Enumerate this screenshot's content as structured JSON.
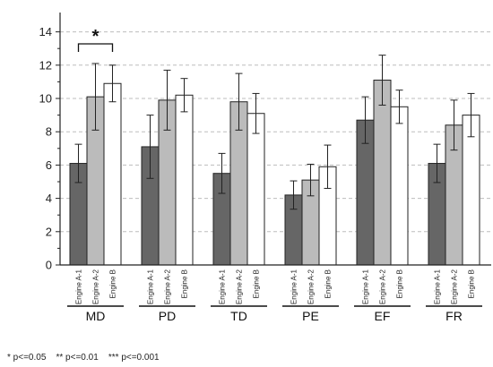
{
  "chart_data": {
    "type": "bar",
    "title": "",
    "xlabel": "",
    "ylabel": "",
    "ylim": [
      0,
      15
    ],
    "yticks": [
      0,
      2,
      4,
      6,
      8,
      10,
      12,
      14
    ],
    "grid": "horizontal dashed",
    "groups": [
      "MD",
      "PD",
      "TD",
      "PE",
      "EF",
      "FR"
    ],
    "series": [
      {
        "name": "Engine A-1",
        "color": "#666666",
        "values": [
          6.1,
          7.1,
          5.5,
          4.2,
          8.7,
          6.1
        ],
        "errors": [
          1.15,
          1.9,
          1.2,
          0.85,
          1.4,
          1.15
        ]
      },
      {
        "name": "Engine A-2",
        "color": "#bbbbbb",
        "values": [
          10.1,
          9.9,
          9.8,
          5.1,
          11.1,
          8.4
        ],
        "errors": [
          2.0,
          1.8,
          1.7,
          0.95,
          1.5,
          1.5
        ]
      },
      {
        "name": "Engine B",
        "color": "#ffffff",
        "values": [
          10.9,
          10.2,
          9.1,
          5.9,
          9.5,
          9.0
        ],
        "errors": [
          1.1,
          1.0,
          1.2,
          1.3,
          1.0,
          1.3
        ]
      }
    ],
    "significance": [
      {
        "group": "MD",
        "from": "Engine A-1",
        "to": "Engine B",
        "mark": "*"
      }
    ],
    "footnote": "* p<=0.05    ** p<=0.01    *** p<=0.001"
  }
}
